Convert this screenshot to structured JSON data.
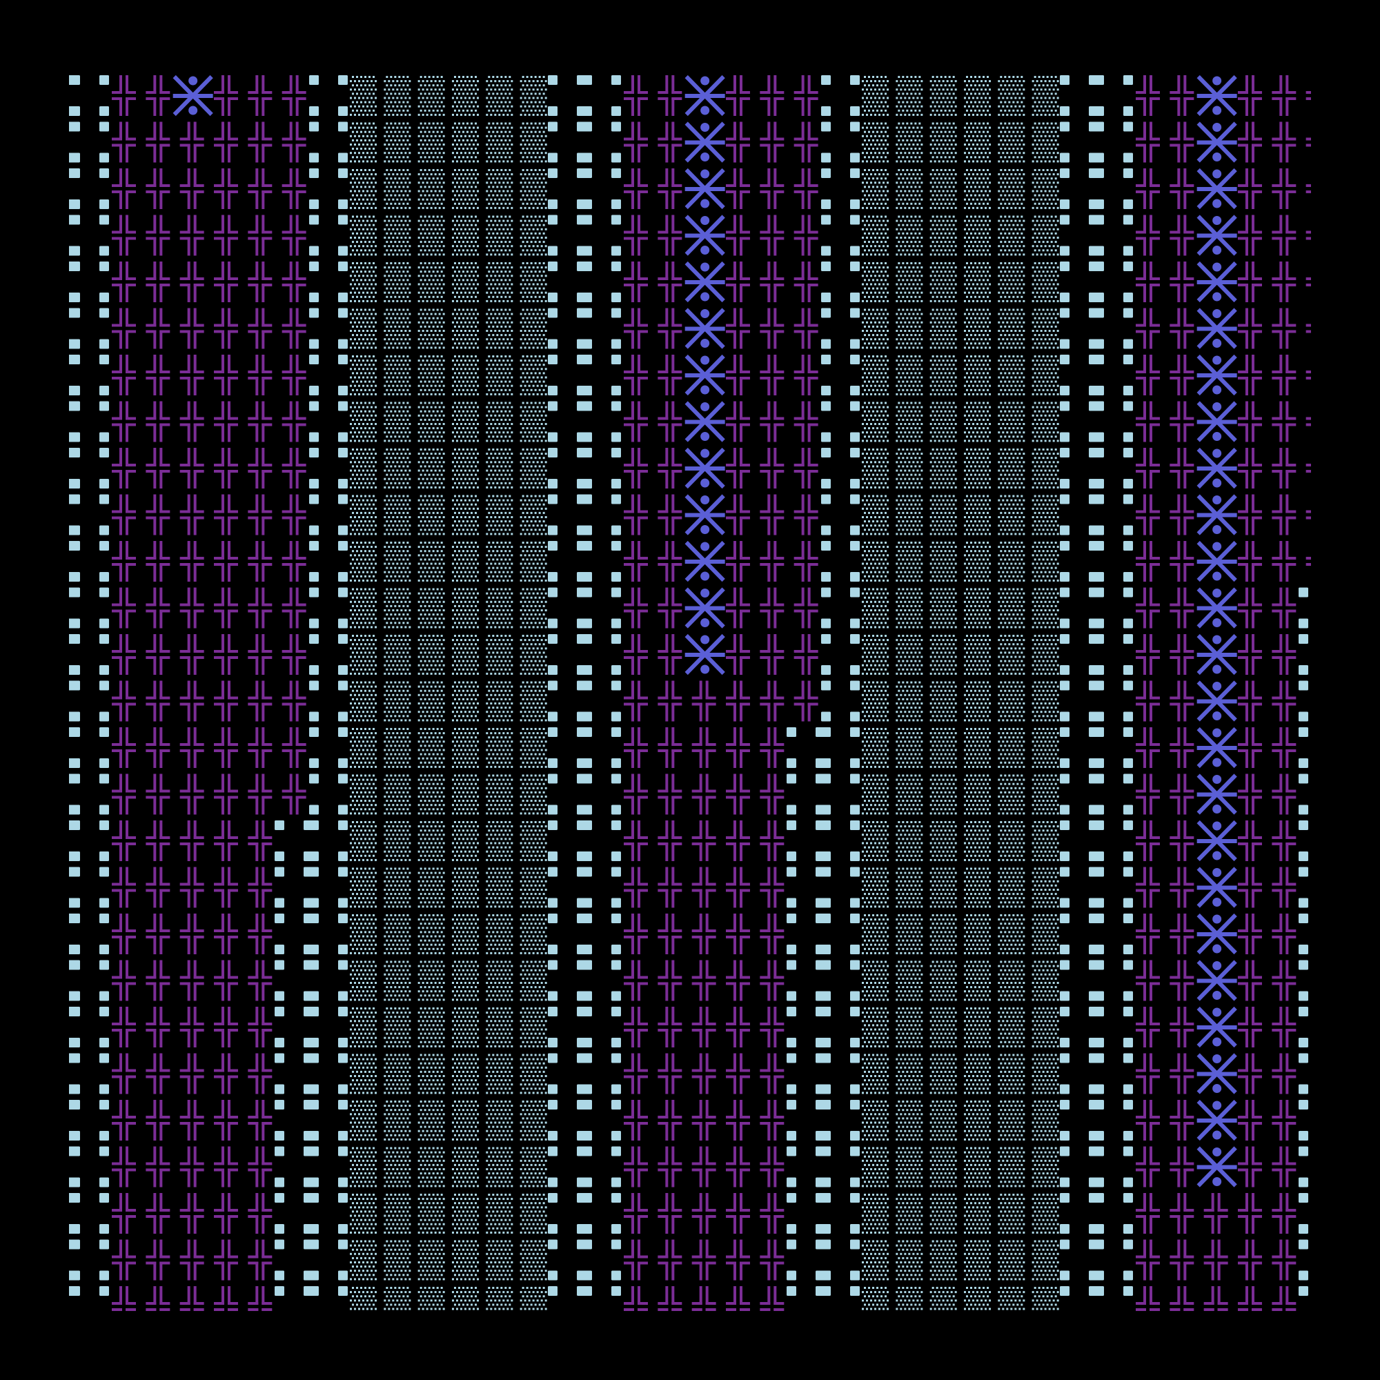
{
  "canvas": {
    "background": "#000000"
  },
  "colors": {
    "cross": "#7b2d96",
    "star": "#5b5fd6",
    "square": "#add8e6",
    "dots": "#add8e6"
  },
  "glyphs": {
    "cross": "double-cross-icon",
    "star": "asterisk-star-icon",
    "square": "square-icon",
    "wide_square": "wide-square-icon",
    "dots": "dot-texture-icon"
  },
  "pattern": {
    "star_column": 2,
    "cross_bands": [
      {
        "star_rows": [
          0
        ],
        "narrow_from_row": 16
      },
      {
        "star_rows": [
          0,
          1,
          2,
          3,
          4,
          5,
          6,
          7,
          8,
          9,
          10,
          11,
          12
        ],
        "narrow_from_row": 14
      },
      {
        "star_rows": [
          0,
          1,
          2,
          3,
          4,
          5,
          6,
          7,
          8,
          9,
          10,
          11,
          12,
          13,
          14,
          15,
          16,
          17,
          18,
          19,
          20,
          21,
          22,
          23
        ],
        "narrow_from_row": 11
      }
    ]
  }
}
